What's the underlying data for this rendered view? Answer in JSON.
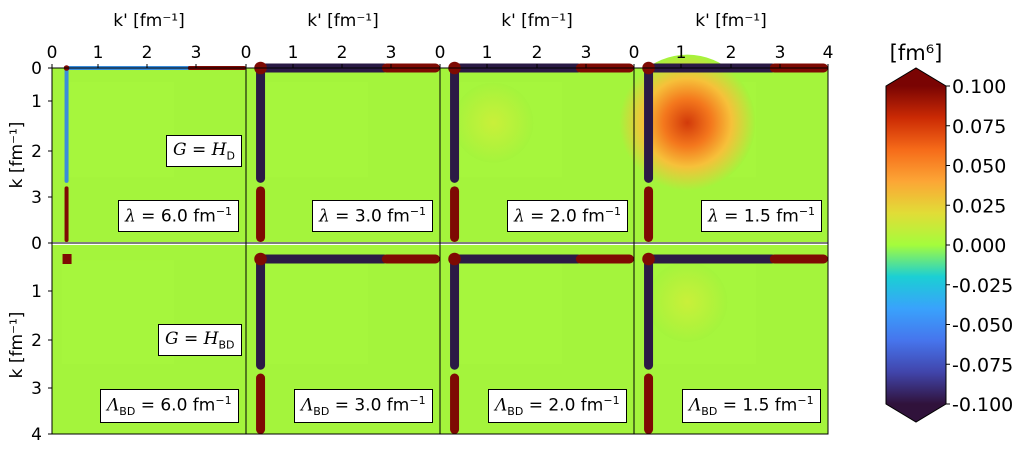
{
  "chart_data": {
    "type": "heatmap",
    "x_axis_label": "k' [fm⁻¹]",
    "y_axis_label": "k [fm⁻¹]",
    "x_ticks": [
      "0",
      "1",
      "2",
      "3",
      "4"
    ],
    "y_ticks": [
      "0",
      "1",
      "2",
      "3",
      "4"
    ],
    "xlim": [
      0,
      4
    ],
    "ylim": [
      0,
      4
    ],
    "grid": false,
    "colorbar": {
      "title": "[fm⁶]",
      "range": [
        -0.1,
        0.1
      ],
      "ticks": [
        "0.100",
        "0.075",
        "0.050",
        "0.025",
        "0.000",
        "-0.025",
        "-0.050",
        "-0.075",
        "-0.100"
      ],
      "colormap": "turbo",
      "extend": "both"
    },
    "rows": [
      {
        "label": "G = H_D",
        "panels": [
          {
            "label": "λ = 6.0 fm⁻¹",
            "cutoff": 6.0,
            "cross_k": 0.3,
            "bump": 0.0
          },
          {
            "label": "λ = 3.0 fm⁻¹",
            "cutoff": 3.0,
            "cross_k": 0.3,
            "bump": 0.0
          },
          {
            "label": "λ = 2.0 fm⁻¹",
            "cutoff": 2.0,
            "cross_k": 0.3,
            "bump": 0.02
          },
          {
            "label": "λ = 1.5 fm⁻¹",
            "cutoff": 1.5,
            "cross_k": 0.3,
            "bump": 0.09
          }
        ]
      },
      {
        "label": "G = H_BD",
        "panels": [
          {
            "label": "Λ_BD = 6.0 fm⁻¹",
            "cutoff": 6.0,
            "cross_k": 0.3,
            "bump": 0.0
          },
          {
            "label": "Λ_BD = 3.0 fm⁻¹",
            "cutoff": 3.0,
            "cross_k": 0.3,
            "bump": 0.0
          },
          {
            "label": "Λ_BD = 2.0 fm⁻¹",
            "cutoff": 2.0,
            "cross_k": 0.3,
            "bump": 0.0
          },
          {
            "label": "Λ_BD = 1.5 fm⁻¹",
            "cutoff": 1.5,
            "cross_k": 0.3,
            "bump": 0.03
          }
        ]
      }
    ]
  },
  "labels": {
    "row0": {
      "prefix": "G = H",
      "sub": "D"
    },
    "row1": {
      "prefix": "G = H",
      "sub": "BD"
    },
    "lam": [
      {
        "sym": "λ",
        "sub": "",
        "rest": " = 6.0 fm",
        "exp": "−1"
      },
      {
        "sym": "λ",
        "sub": "",
        "rest": " = 3.0 fm",
        "exp": "−1"
      },
      {
        "sym": "λ",
        "sub": "",
        "rest": " = 2.0 fm",
        "exp": "−1"
      },
      {
        "sym": "λ",
        "sub": "",
        "rest": " = 1.5 fm",
        "exp": "−1"
      }
    ],
    "Lam": [
      {
        "sym": "Λ",
        "sub": "BD",
        "rest": " = 6.0 fm",
        "exp": "−1"
      },
      {
        "sym": "Λ",
        "sub": "BD",
        "rest": " = 3.0 fm",
        "exp": "−1"
      },
      {
        "sym": "Λ",
        "sub": "BD",
        "rest": " = 2.0 fm",
        "exp": "−1"
      },
      {
        "sym": "Λ",
        "sub": "BD",
        "rest": " = 1.5 fm",
        "exp": "−1"
      }
    ]
  }
}
